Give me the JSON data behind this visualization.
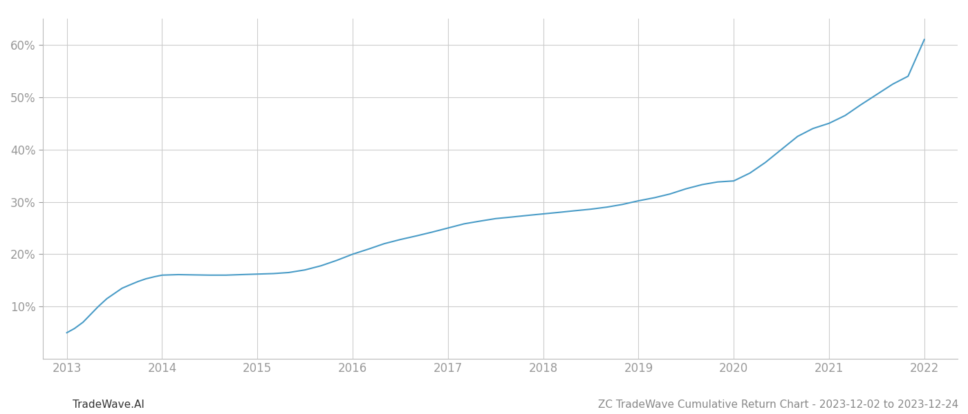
{
  "title": "ZC TradeWave Cumulative Return Chart - 2023-12-02 to 2023-12-24",
  "watermark": "TradeWave.AI",
  "x_years": [
    2013,
    2014,
    2015,
    2016,
    2017,
    2018,
    2019,
    2020,
    2021,
    2022
  ],
  "x_values": [
    2013.0,
    2013.08,
    2013.17,
    2013.25,
    2013.33,
    2013.42,
    2013.5,
    2013.58,
    2013.67,
    2013.75,
    2013.83,
    2013.92,
    2014.0,
    2014.17,
    2014.33,
    2014.5,
    2014.67,
    2014.83,
    2015.0,
    2015.17,
    2015.33,
    2015.5,
    2015.67,
    2015.83,
    2016.0,
    2016.17,
    2016.33,
    2016.5,
    2016.67,
    2016.83,
    2017.0,
    2017.17,
    2017.33,
    2017.5,
    2017.67,
    2017.83,
    2018.0,
    2018.17,
    2018.33,
    2018.5,
    2018.67,
    2018.83,
    2019.0,
    2019.17,
    2019.33,
    2019.5,
    2019.67,
    2019.83,
    2020.0,
    2020.17,
    2020.33,
    2020.5,
    2020.67,
    2020.83,
    2021.0,
    2021.17,
    2021.33,
    2021.5,
    2021.67,
    2021.83,
    2022.0
  ],
  "y_values": [
    5.0,
    5.8,
    7.0,
    8.5,
    10.0,
    11.5,
    12.5,
    13.5,
    14.2,
    14.8,
    15.3,
    15.7,
    16.0,
    16.1,
    16.05,
    16.0,
    16.0,
    16.1,
    16.2,
    16.3,
    16.5,
    17.0,
    17.8,
    18.8,
    20.0,
    21.0,
    22.0,
    22.8,
    23.5,
    24.2,
    25.0,
    25.8,
    26.3,
    26.8,
    27.1,
    27.4,
    27.7,
    28.0,
    28.3,
    28.6,
    29.0,
    29.5,
    30.2,
    30.8,
    31.5,
    32.5,
    33.3,
    33.8,
    34.0,
    35.5,
    37.5,
    40.0,
    42.5,
    44.0,
    45.0,
    46.5,
    48.5,
    50.5,
    52.5,
    54.0,
    61.0
  ],
  "line_color": "#4a9cc7",
  "line_width": 1.5,
  "background_color": "#ffffff",
  "grid_color": "#cccccc",
  "tick_color": "#999999",
  "title_color": "#888888",
  "watermark_color": "#333333",
  "ylim": [
    0,
    65
  ],
  "yticks": [
    10,
    20,
    30,
    40,
    50,
    60
  ],
  "xlim_left": 2012.75,
  "xlim_right": 2022.35,
  "title_fontsize": 11,
  "tick_fontsize": 12,
  "watermark_fontsize": 11
}
